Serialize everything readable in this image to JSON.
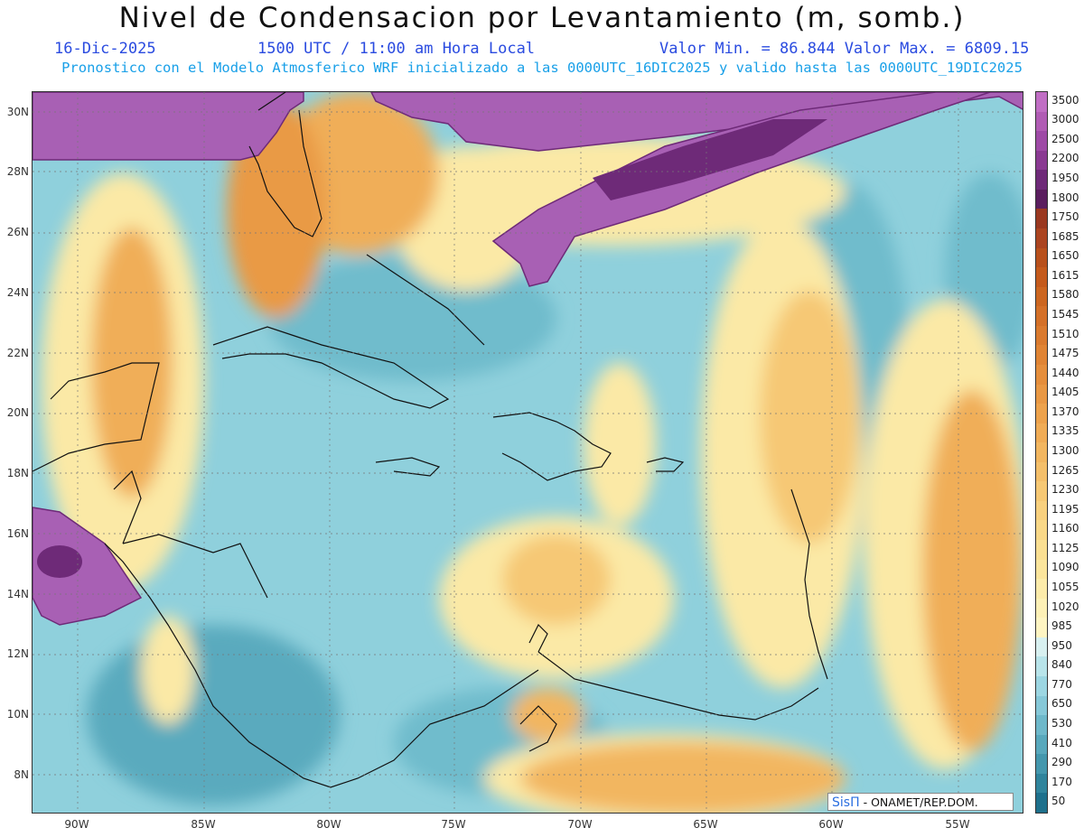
{
  "title": "Nivel de Condensacion por Levantamiento (m, somb.)",
  "date": "16-Dic-2025",
  "time": "1500 UTC / 11:00 am Hora Local",
  "minmax": "Valor Min. = 86.844  Valor Max. = 6809.15",
  "forecast": "Pronostico con el Modelo Atmosferico WRF inicializado a las 0000UTC_16DIC2025 y valido hasta las  0000UTC_19DIC2025",
  "credit": {
    "logo": "SisΠ",
    "text": "- ONAMET/REP.DOM."
  },
  "lat_labels": [
    "30N",
    "28N",
    "26N",
    "24N",
    "22N",
    "20N",
    "18N",
    "16N",
    "14N",
    "12N",
    "10N",
    "8N"
  ],
  "lon_labels": [
    "90W",
    "85W",
    "80W",
    "75W",
    "70W",
    "65W",
    "60W",
    "55W"
  ],
  "colorbar": {
    "levels": [
      "3500",
      "3000",
      "2500",
      "2200",
      "1950",
      "1800",
      "1750",
      "1685",
      "1650",
      "1615",
      "1580",
      "1545",
      "1510",
      "1475",
      "1440",
      "1405",
      "1370",
      "1335",
      "1300",
      "1265",
      "1230",
      "1195",
      "1160",
      "1125",
      "1090",
      "1055",
      "1020",
      "985",
      "950",
      "840",
      "770",
      "650",
      "530",
      "410",
      "290",
      "170",
      "50"
    ],
    "colors": [
      "#c06ec4",
      "#b05cb4",
      "#9e4aa6",
      "#8a3a92",
      "#6e2a78",
      "#5a1e5e",
      "#9a3820",
      "#ab4420",
      "#b8501c",
      "#c45a1c",
      "#cc6620",
      "#d47028",
      "#da7a2e",
      "#e08434",
      "#e58e3c",
      "#e99844",
      "#eda24c",
      "#f0ac56",
      "#f2b660",
      "#f4bf6a",
      "#f6c874",
      "#f8d07e",
      "#f9d888",
      "#fadf92",
      "#fbe59c",
      "#fcebaa",
      "#fdf0b6",
      "#fef4c2",
      "#d8f0f0",
      "#b8e4ea",
      "#9cd6e2",
      "#86c8d8",
      "#6eb8ca",
      "#58a8bc",
      "#4497ad",
      "#30849c",
      "#1e708c"
    ]
  },
  "colors": {
    "purple": "#a860b4",
    "deep_purple": "#6e2a78",
    "orange": "#e08a38",
    "yellow": "#fbe9a6",
    "cyan": "#8fd0dc",
    "teal": "#5aaabe"
  },
  "icons": {
    "coastline": "coastline-icon"
  }
}
